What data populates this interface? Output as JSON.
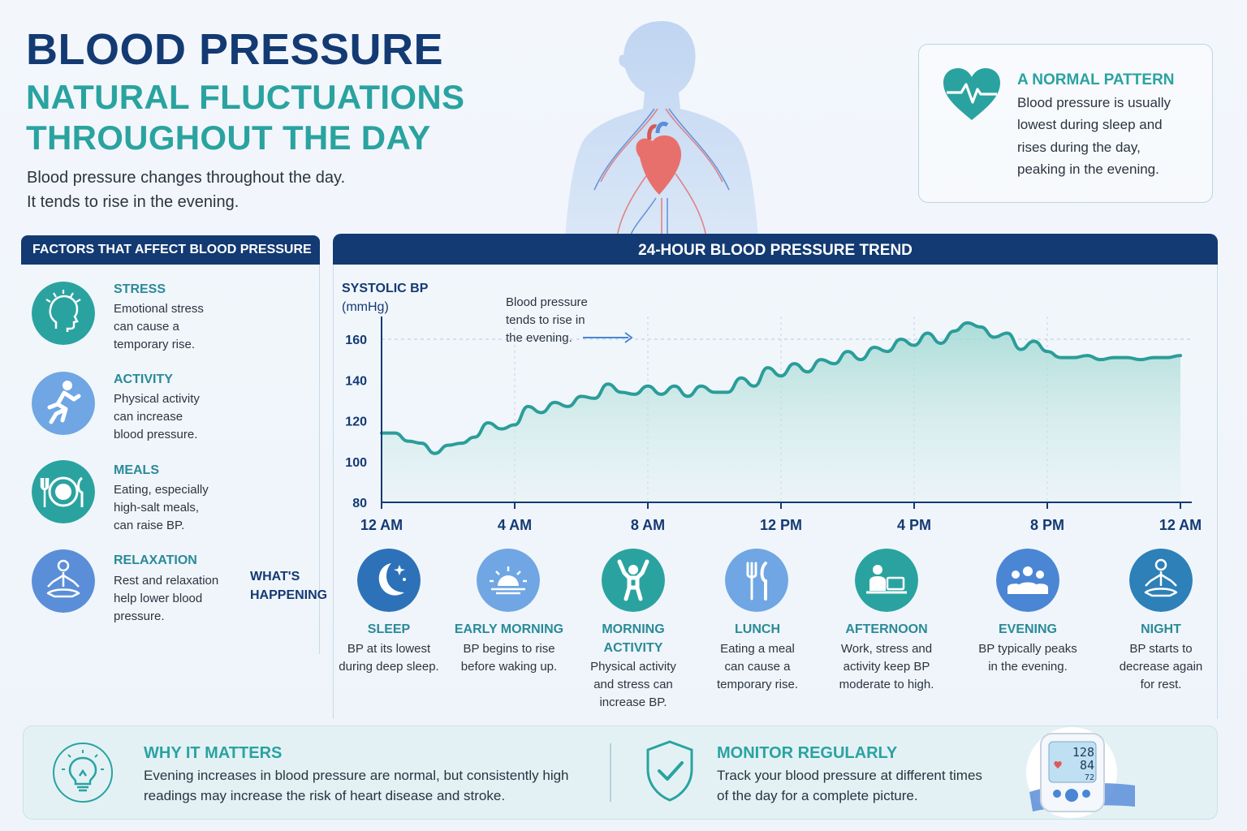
{
  "header": {
    "title": "BLOOD PRESSURE",
    "subtitle_line1": "NATURAL FLUCTUATIONS",
    "subtitle_line2": "THROUGHOUT THE DAY",
    "intro_line1": "Blood pressure changes throughout the day.",
    "intro_line2": "It tends to rise in the evening."
  },
  "normal_pattern": {
    "icon": "heart-pulse-icon",
    "title": "A NORMAL PATTERN",
    "lines": [
      "Blood pressure is usually",
      "lowest during sleep and",
      "rises during the day,",
      "peaking in the evening."
    ]
  },
  "factors": {
    "heading": "FACTORS THAT AFFECT BLOOD PRESSURE",
    "items": [
      {
        "icon": "stress-head-icon",
        "title": "STRESS",
        "lines": [
          "Emotional stress",
          "can cause a",
          "temporary rise."
        ]
      },
      {
        "icon": "running-person-icon",
        "title": "ACTIVITY",
        "lines": [
          "Physical activity",
          "can increase",
          "blood pressure."
        ]
      },
      {
        "icon": "plate-cutlery-icon",
        "title": "MEALS",
        "lines": [
          "Eating, especially",
          "high-salt meals,",
          "can raise BP."
        ]
      },
      {
        "icon": "meditation-icon",
        "title": "RELAXATION",
        "lines": [
          "Rest and relaxation",
          "help lower blood",
          "pressure."
        ]
      }
    ]
  },
  "chart_heading": "24-HOUR BLOOD PRESSURE TREND",
  "annotation": [
    "Blood pressure",
    "tends to rise in",
    "the evening."
  ],
  "chart_data": {
    "type": "area",
    "title": "24-HOUR BLOOD PRESSURE TREND",
    "ylabel_line1": "SYSTOLIC BP",
    "ylabel_line2": "(mmHg)",
    "ylim": [
      80,
      170
    ],
    "yticks": [
      80,
      100,
      120,
      140,
      160
    ],
    "xlim": [
      0,
      24
    ],
    "xticks": [
      {
        "x": 0,
        "label": "12 AM"
      },
      {
        "x": 4,
        "label": "4 AM"
      },
      {
        "x": 8,
        "label": "8 AM"
      },
      {
        "x": 12,
        "label": "12 PM"
      },
      {
        "x": 16,
        "label": "4 PM"
      },
      {
        "x": 20,
        "label": "8 PM"
      },
      {
        "x": 24,
        "label": "12 AM"
      }
    ],
    "grid": "vertical dashed at 4 AM, 8 AM, 12 PM, 4 PM, 8 PM; horizontal dashed at 160",
    "series": [
      {
        "color": "#2a9d9a",
        "fill": "#9fd8d2",
        "x": [
          0,
          0.4,
          0.8,
          1.2,
          1.6,
          2.0,
          2.4,
          2.8,
          3.2,
          3.6,
          4.0,
          4.4,
          4.8,
          5.2,
          5.6,
          6.0,
          6.4,
          6.8,
          7.2,
          7.6,
          8.0,
          8.4,
          8.8,
          9.2,
          9.6,
          10.0,
          10.4,
          10.8,
          11.2,
          11.6,
          12.0,
          12.4,
          12.8,
          13.2,
          13.6,
          14.0,
          14.4,
          14.8,
          15.2,
          15.6,
          16.0,
          16.4,
          16.8,
          17.2,
          17.6,
          18.0,
          18.4,
          18.8,
          19.2,
          19.6,
          20.0,
          20.4,
          20.8,
          21.2,
          21.6,
          22.0,
          22.4,
          22.8,
          23.2,
          23.6,
          24.0
        ],
        "values": [
          114,
          114,
          110,
          109,
          104,
          108,
          109,
          112,
          119,
          116,
          118,
          127,
          124,
          129,
          127,
          132,
          131,
          138,
          134,
          133,
          137,
          133,
          137,
          132,
          137,
          134,
          134,
          141,
          137,
          146,
          142,
          148,
          144,
          150,
          148,
          154,
          150,
          156,
          154,
          160,
          157,
          163,
          158,
          164,
          168,
          166,
          161,
          163,
          155,
          159,
          154,
          151,
          151,
          152,
          150,
          151,
          151,
          150,
          151,
          151,
          152
        ]
      }
    ]
  },
  "whats_happening": {
    "label_line1": "WHAT'S",
    "label_line2": "HAPPENING",
    "phases": [
      {
        "icon": "moon-stars-icon",
        "title_lines": [
          "SLEEP"
        ],
        "lines": [
          "BP at its lowest",
          "during deep sleep."
        ]
      },
      {
        "icon": "sunrise-icon",
        "title_lines": [
          "EARLY MORNING"
        ],
        "lines": [
          "BP begins to rise",
          "before waking up."
        ]
      },
      {
        "icon": "stretching-person-icon",
        "title_lines": [
          "MORNING",
          "ACTIVITY"
        ],
        "lines": [
          "Physical activity",
          "and stress can",
          "increase BP."
        ]
      },
      {
        "icon": "fork-knife-icon",
        "title_lines": [
          "LUNCH"
        ],
        "lines": [
          "Eating a meal",
          "can cause a",
          "temporary rise."
        ]
      },
      {
        "icon": "laptop-worker-icon",
        "title_lines": [
          "AFTERNOON"
        ],
        "lines": [
          "Work, stress and",
          "activity keep BP",
          "moderate to high."
        ]
      },
      {
        "icon": "people-group-icon",
        "title_lines": [
          "EVENING"
        ],
        "lines": [
          "BP typically peaks",
          "in the evening."
        ]
      },
      {
        "icon": "meditation-icon",
        "title_lines": [
          "NIGHT"
        ],
        "lines": [
          "BP starts to",
          "decrease again",
          "for rest."
        ]
      }
    ]
  },
  "bottom": {
    "why": {
      "icon": "lightbulb-icon",
      "title": "WHY IT MATTERS",
      "lines": [
        "Evening increases in blood pressure are normal, but consistently high",
        "readings may increase the risk of heart disease and stroke."
      ]
    },
    "monitor": {
      "icon": "shield-check-icon",
      "title": "MONITOR REGULARLY",
      "lines": [
        "Track your blood pressure at different times",
        "of the day for a complete picture."
      ]
    },
    "device": {
      "icon": "bp-monitor-icon",
      "readings": [
        "128",
        "84",
        "72"
      ]
    }
  },
  "colors": {
    "navy": "#133a72",
    "teal": "#2aa3a0",
    "blue": "#4a86d4"
  }
}
